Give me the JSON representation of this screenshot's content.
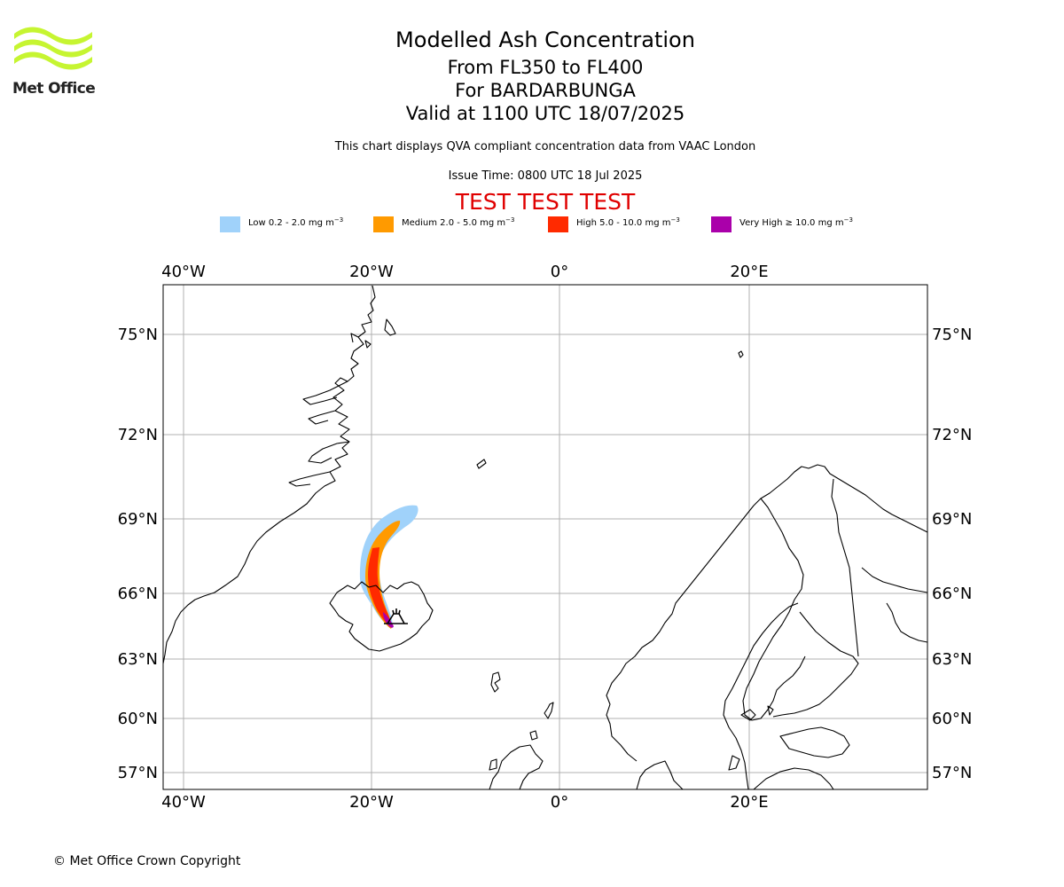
{
  "logo": {
    "text": "Met Office"
  },
  "title": {
    "main": "Modelled Ash Concentration",
    "levels": "From FL350 to FL400",
    "volcano": "For BARDARBUNGA",
    "valid": "Valid at 1100 UTC 18/07/2025"
  },
  "subtitle": "This chart displays QVA compliant concentration data from VAAC London",
  "issue_time": "Issue Time: 0800 UTC 18 Jul 2025",
  "test_banner": "TEST TEST TEST",
  "legend": [
    {
      "label": "Low 0.2 - 2.0 mg m",
      "color": "#a0d2fa"
    },
    {
      "label": "Medium 2.0 - 5.0 mg m",
      "color": "#ff9a00"
    },
    {
      "label": "High 5.0 - 10.0 mg m",
      "color": "#ff2a00"
    },
    {
      "label": "Very High ≥ 10.0 mg m",
      "color": "#aa00aa"
    }
  ],
  "legend_unit_exponent": "−3",
  "axes": {
    "lon_labels": [
      "40°W",
      "20°W",
      "0°",
      "20°E"
    ],
    "lat_labels": [
      "75°N",
      "72°N",
      "69°N",
      "66°N",
      "63°N",
      "60°N",
      "57°N"
    ],
    "grid": true
  },
  "volcano_marker": "volcano-icon",
  "copyright": "© Met Office Crown Copyright"
}
